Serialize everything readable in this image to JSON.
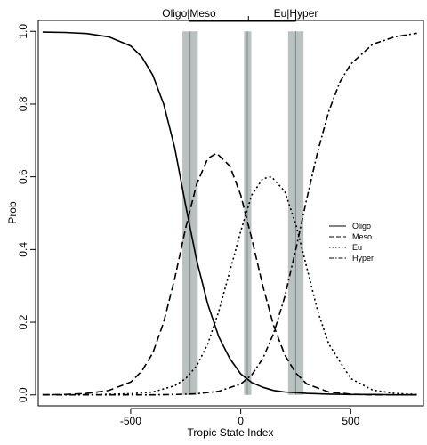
{
  "chart_data": {
    "type": "line",
    "title": "",
    "xlabel": "Tropic State Index",
    "ylabel": "Prob",
    "xlim": [
      -920,
      830
    ],
    "ylim": [
      -0.03,
      1.03
    ],
    "x_ticks": [
      -500,
      0,
      500
    ],
    "x_tick_labels": [
      "-500",
      "0",
      "500"
    ],
    "y_ticks": [
      0.0,
      0.2,
      0.4,
      0.6,
      0.8,
      1.0
    ],
    "y_tick_labels": [
      "0.0",
      "0.2",
      "0.4",
      "0.6",
      "0.8",
      "1.0"
    ],
    "top_axis_ticks": [
      -235,
      35,
      250
    ],
    "top_axis_labels": [
      {
        "text": "Oligo|Meso",
        "x": -235
      },
      {
        "text": "Eu|Hyper",
        "x": 250
      }
    ],
    "threshold_bands": [
      {
        "center": -230,
        "low": -265,
        "high": -195
      },
      {
        "center": 30,
        "low": 15,
        "high": 48
      },
      {
        "center": 250,
        "low": 215,
        "high": 285
      }
    ],
    "grid": false,
    "legend_position": "right-center",
    "series": [
      {
        "name": "Oligo",
        "line_style": "solid",
        "x": [
          -900,
          -800,
          -700,
          -600,
          -500,
          -450,
          -400,
          -350,
          -300,
          -250,
          -200,
          -150,
          -100,
          -50,
          0,
          50,
          100,
          150,
          200,
          300,
          400,
          500,
          600,
          700,
          800
        ],
        "values": [
          0.998,
          0.997,
          0.994,
          0.985,
          0.96,
          0.93,
          0.88,
          0.8,
          0.68,
          0.52,
          0.37,
          0.25,
          0.16,
          0.1,
          0.058,
          0.034,
          0.021,
          0.012,
          0.008,
          0.004,
          0.002,
          0.001,
          0.001,
          0.0,
          0.0
        ]
      },
      {
        "name": "Meso",
        "line_style": "dashed",
        "x": [
          -900,
          -800,
          -700,
          -600,
          -500,
          -450,
          -400,
          -350,
          -300,
          -250,
          -200,
          -150,
          -110,
          -50,
          0,
          50,
          100,
          150,
          200,
          250,
          300,
          400,
          500,
          600,
          700,
          800
        ],
        "values": [
          0.0,
          0.001,
          0.004,
          0.012,
          0.035,
          0.065,
          0.115,
          0.2,
          0.32,
          0.46,
          0.58,
          0.65,
          0.665,
          0.63,
          0.55,
          0.43,
          0.3,
          0.19,
          0.11,
          0.06,
          0.03,
          0.008,
          0.002,
          0.0,
          0.0,
          0.0
        ]
      },
      {
        "name": "Eu",
        "line_style": "dotted",
        "x": [
          -900,
          -700,
          -500,
          -400,
          -300,
          -250,
          -200,
          -150,
          -100,
          -50,
          0,
          50,
          100,
          140,
          200,
          250,
          300,
          350,
          400,
          500,
          600,
          700,
          800
        ],
        "values": [
          0.0,
          0.0,
          0.003,
          0.008,
          0.025,
          0.045,
          0.08,
          0.14,
          0.23,
          0.34,
          0.45,
          0.55,
          0.595,
          0.6,
          0.56,
          0.47,
          0.35,
          0.23,
          0.14,
          0.045,
          0.013,
          0.004,
          0.001
        ]
      },
      {
        "name": "Hyper",
        "line_style": "dotdash",
        "x": [
          -900,
          -600,
          -400,
          -300,
          -200,
          -100,
          0,
          50,
          100,
          150,
          200,
          250,
          300,
          350,
          400,
          450,
          500,
          600,
          700,
          800
        ],
        "values": [
          0.0,
          0.0,
          0.0,
          0.001,
          0.003,
          0.01,
          0.03,
          0.055,
          0.1,
          0.17,
          0.27,
          0.4,
          0.54,
          0.67,
          0.78,
          0.86,
          0.91,
          0.965,
          0.985,
          0.995
        ]
      }
    ]
  }
}
